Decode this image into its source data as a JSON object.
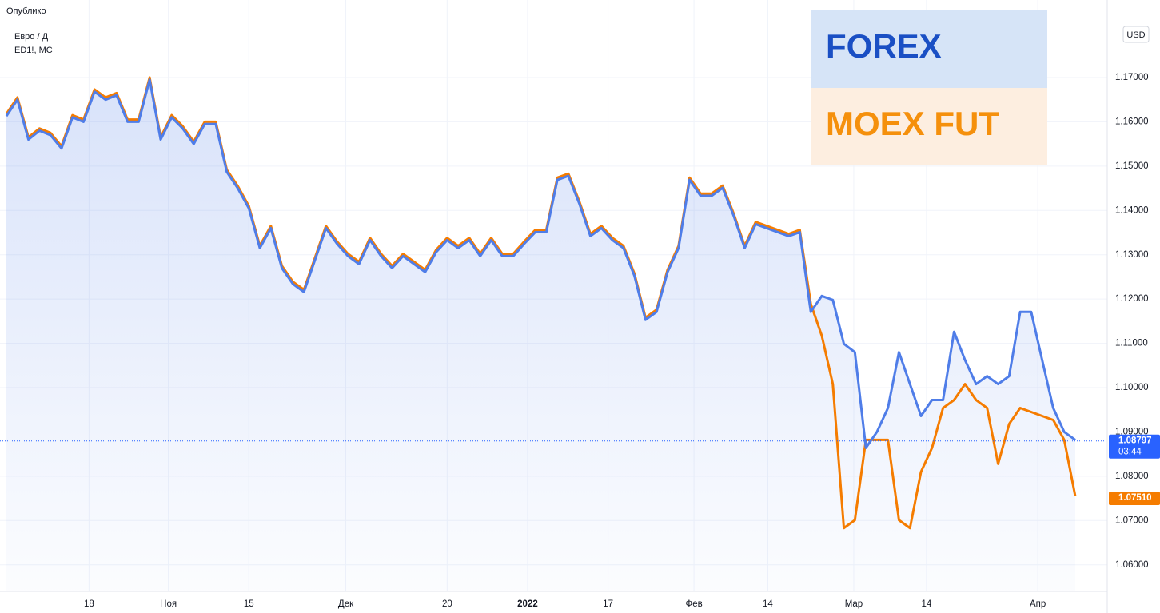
{
  "chart_data": {
    "type": "line",
    "header": {
      "published": "Опублико",
      "symbol1": "Евро / Д",
      "symbol2": "ED1!, МС",
      "currency": "USD"
    },
    "legend": [
      {
        "text": "FOREX",
        "color": "#1a4fc4",
        "bg": "#d6e4f7"
      },
      {
        "text": "MOEX FUT",
        "color": "#f5900c",
        "bg": "#fdeee0"
      }
    ],
    "xlim": [
      0,
      97
    ],
    "xticks": [
      {
        "value": 7.5,
        "label": "18"
      },
      {
        "value": 14.7,
        "label": "Ноя"
      },
      {
        "value": 22,
        "label": "15"
      },
      {
        "value": 30.8,
        "label": "Дек"
      },
      {
        "value": 40,
        "label": "20"
      },
      {
        "value": 47.3,
        "label": "2022"
      },
      {
        "value": 54.6,
        "label": "17"
      },
      {
        "value": 62.4,
        "label": "Фев"
      },
      {
        "value": 69.1,
        "label": "14"
      },
      {
        "value": 76.9,
        "label": "Мар"
      },
      {
        "value": 83.5,
        "label": "14"
      },
      {
        "value": 93.6,
        "label": "Апр"
      }
    ],
    "ylim": [
      1.054,
      1.1875
    ],
    "yticks": [
      {
        "value": 1.06,
        "label": "1.06000"
      },
      {
        "value": 1.07,
        "label": "1.07000"
      },
      {
        "value": 1.08,
        "label": "1.08000"
      },
      {
        "value": 1.09,
        "label": "1.09000"
      },
      {
        "value": 1.1,
        "label": "1.10000"
      },
      {
        "value": 1.11,
        "label": "1.11000"
      },
      {
        "value": 1.12,
        "label": "1.12000"
      },
      {
        "value": 1.13,
        "label": "1.13000"
      },
      {
        "value": 1.14,
        "label": "1.14000"
      },
      {
        "value": 1.15,
        "label": "1.15000"
      },
      {
        "value": 1.16,
        "label": "1.16000"
      },
      {
        "value": 1.17,
        "label": "1.17000"
      }
    ],
    "grid": true,
    "series": [
      {
        "name": "FOREX",
        "color": "#4f7de8",
        "values": [
          1.1613,
          1.165,
          1.156,
          1.158,
          1.157,
          1.154,
          1.161,
          1.16,
          1.1668,
          1.165,
          1.166,
          1.16,
          1.16,
          1.1695,
          1.156,
          1.161,
          1.1585,
          1.155,
          1.1595,
          1.1595,
          1.1487,
          1.145,
          1.1405,
          1.1315,
          1.136,
          1.127,
          1.1234,
          1.1216,
          1.1288,
          1.136,
          1.1325,
          1.1297,
          1.1279,
          1.1333,
          1.1297,
          1.127,
          1.1297,
          1.1279,
          1.1261,
          1.1306,
          1.1333,
          1.1315,
          1.1333,
          1.1297,
          1.1333,
          1.1297,
          1.1297,
          1.1325,
          1.1351,
          1.1351,
          1.1469,
          1.1478,
          1.1415,
          1.1342,
          1.136,
          1.1333,
          1.1315,
          1.1252,
          1.1153,
          1.1171,
          1.1261,
          1.1315,
          1.1469,
          1.1433,
          1.1433,
          1.1451,
          1.1388,
          1.1315,
          1.1369,
          1.136,
          1.1351,
          1.1342,
          1.1351,
          1.1171,
          1.1207,
          1.1198,
          1.1099,
          1.108,
          1.0864,
          1.09,
          1.0954,
          1.108,
          1.1008,
          1.0936,
          1.0972,
          1.0972,
          1.1126,
          1.1062,
          1.1008,
          1.1026,
          1.1008,
          1.1026,
          1.1171,
          1.1171,
          1.1062,
          1.0954,
          1.09,
          1.0882
        ]
      },
      {
        "name": "MOEX FUT",
        "color": "#f57c00",
        "values": [
          1.1618,
          1.1655,
          1.1565,
          1.1585,
          1.1575,
          1.1545,
          1.1615,
          1.1605,
          1.1673,
          1.1655,
          1.1665,
          1.1605,
          1.1605,
          1.17,
          1.1565,
          1.1615,
          1.159,
          1.1555,
          1.16,
          1.16,
          1.1492,
          1.1455,
          1.141,
          1.132,
          1.1365,
          1.1275,
          1.1239,
          1.1221,
          1.1293,
          1.1365,
          1.133,
          1.1302,
          1.1284,
          1.1338,
          1.1302,
          1.1275,
          1.1302,
          1.1284,
          1.1266,
          1.1311,
          1.1338,
          1.132,
          1.1338,
          1.1302,
          1.1338,
          1.1302,
          1.1302,
          1.133,
          1.1356,
          1.1356,
          1.1474,
          1.1483,
          1.142,
          1.1347,
          1.1365,
          1.1338,
          1.132,
          1.1257,
          1.1158,
          1.1176,
          1.1266,
          1.132,
          1.1474,
          1.1438,
          1.1438,
          1.1456,
          1.1393,
          1.132,
          1.1374,
          1.1365,
          1.1356,
          1.1347,
          1.1356,
          1.1189,
          1.1117,
          1.1008,
          1.0683,
          1.0701,
          1.0882,
          1.0882,
          1.0882,
          1.0701,
          1.0683,
          1.081,
          1.0864,
          1.0954,
          1.0972,
          1.1008,
          1.0972,
          1.0954,
          1.0828,
          1.0918,
          1.0954,
          1.0945,
          1.0936,
          1.0927,
          1.0882,
          1.0755
        ]
      }
    ],
    "last_labels": [
      {
        "value": 1.08797,
        "label": "1.08797",
        "time": "03:44",
        "color": "#2962ff"
      },
      {
        "value": 1.0751,
        "label": "1.07510",
        "color": "#f57c00"
      }
    ]
  }
}
